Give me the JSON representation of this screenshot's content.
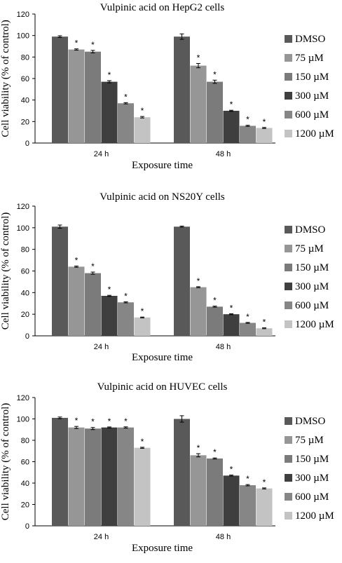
{
  "colors": {
    "DMSO": "#595959",
    "75 µM": "#969696",
    "150 µM": "#7b7b7b",
    "300 µM": "#3f3f3f",
    "600 µM": "#868686",
    "1200 µM": "#c3c3c3"
  },
  "chart_data": [
    {
      "type": "bar",
      "title": "Vulpinic acid on HepG2 cells",
      "xlabel": "Exposure time",
      "ylabel": "Cell viability (% of control)",
      "ylim": [
        0,
        120
      ],
      "yticks": [
        "0",
        "20",
        "40",
        "60",
        "80",
        "100",
        "120"
      ],
      "categories": [
        "24 h",
        "48 h"
      ],
      "legend_position": "right",
      "series": [
        {
          "name": "DMSO",
          "values": [
            99,
            99
          ],
          "errors": [
            0.8,
            2.5
          ],
          "sig": [
            false,
            false
          ]
        },
        {
          "name": "75 µM",
          "values": [
            87,
            72
          ],
          "errors": [
            0.6,
            2.0
          ],
          "sig": [
            true,
            true
          ]
        },
        {
          "name": "150 µM",
          "values": [
            85,
            57
          ],
          "errors": [
            1.2,
            1.5
          ],
          "sig": [
            true,
            true
          ]
        },
        {
          "name": "300 µM",
          "values": [
            57,
            30
          ],
          "errors": [
            1.0,
            0.5
          ],
          "sig": [
            true,
            true
          ]
        },
        {
          "name": "600 µM",
          "values": [
            37,
            16
          ],
          "errors": [
            0.6,
            0.5
          ],
          "sig": [
            true,
            true
          ]
        },
        {
          "name": "1200 µM",
          "values": [
            24,
            14
          ],
          "errors": [
            0.7,
            0.5
          ],
          "sig": [
            true,
            true
          ]
        }
      ]
    },
    {
      "type": "bar",
      "title": "Vulpinic acid on NS20Y cells",
      "xlabel": "Exposure time",
      "ylabel": "Cell viability (% of control)",
      "ylim": [
        0,
        120
      ],
      "yticks": [
        "0",
        "20",
        "40",
        "60",
        "80",
        "100",
        "120"
      ],
      "categories": [
        "24 h",
        "48 h"
      ],
      "legend_position": "right",
      "series": [
        {
          "name": "DMSO",
          "values": [
            101,
            101
          ],
          "errors": [
            1.5,
            0.5
          ],
          "sig": [
            false,
            false
          ]
        },
        {
          "name": "75 µM",
          "values": [
            64,
            45
          ],
          "errors": [
            0.6,
            0.5
          ],
          "sig": [
            true,
            true
          ]
        },
        {
          "name": "150 µM",
          "values": [
            58,
            27
          ],
          "errors": [
            1.0,
            0.5
          ],
          "sig": [
            true,
            true
          ]
        },
        {
          "name": "300 µM",
          "values": [
            37,
            20
          ],
          "errors": [
            0.5,
            0.4
          ],
          "sig": [
            true,
            true
          ]
        },
        {
          "name": "600 µM",
          "values": [
            31,
            12
          ],
          "errors": [
            0.5,
            0.4
          ],
          "sig": [
            true,
            true
          ]
        },
        {
          "name": "1200 µM",
          "values": [
            17,
            7
          ],
          "errors": [
            0.4,
            0.4
          ],
          "sig": [
            true,
            true
          ]
        }
      ]
    },
    {
      "type": "bar",
      "title": "Vulpinic acid on HUVEC cells",
      "xlabel": "Exposure time",
      "ylabel": "Cell viability (% of control)",
      "ylim": [
        0,
        120
      ],
      "yticks": [
        "0",
        "20",
        "40",
        "60",
        "80",
        "100",
        "120"
      ],
      "categories": [
        "24 h",
        "48 h"
      ],
      "legend_position": "right",
      "series": [
        {
          "name": "DMSO",
          "values": [
            101,
            100
          ],
          "errors": [
            0.8,
            3.0
          ],
          "sig": [
            false,
            false
          ]
        },
        {
          "name": "75 µM",
          "values": [
            92,
            66
          ],
          "errors": [
            1.0,
            1.5
          ],
          "sig": [
            true,
            true
          ]
        },
        {
          "name": "150 µM",
          "values": [
            91,
            63
          ],
          "errors": [
            1.0,
            0.5
          ],
          "sig": [
            true,
            true
          ]
        },
        {
          "name": "300 µM",
          "values": [
            92,
            47
          ],
          "errors": [
            0.5,
            0.5
          ],
          "sig": [
            true,
            true
          ]
        },
        {
          "name": "600 µM",
          "values": [
            92,
            38
          ],
          "errors": [
            0.6,
            0.6
          ],
          "sig": [
            true,
            true
          ]
        },
        {
          "name": "1200 µM",
          "values": [
            73,
            35
          ],
          "errors": [
            0.5,
            0.5
          ],
          "sig": [
            true,
            true
          ]
        }
      ]
    }
  ]
}
